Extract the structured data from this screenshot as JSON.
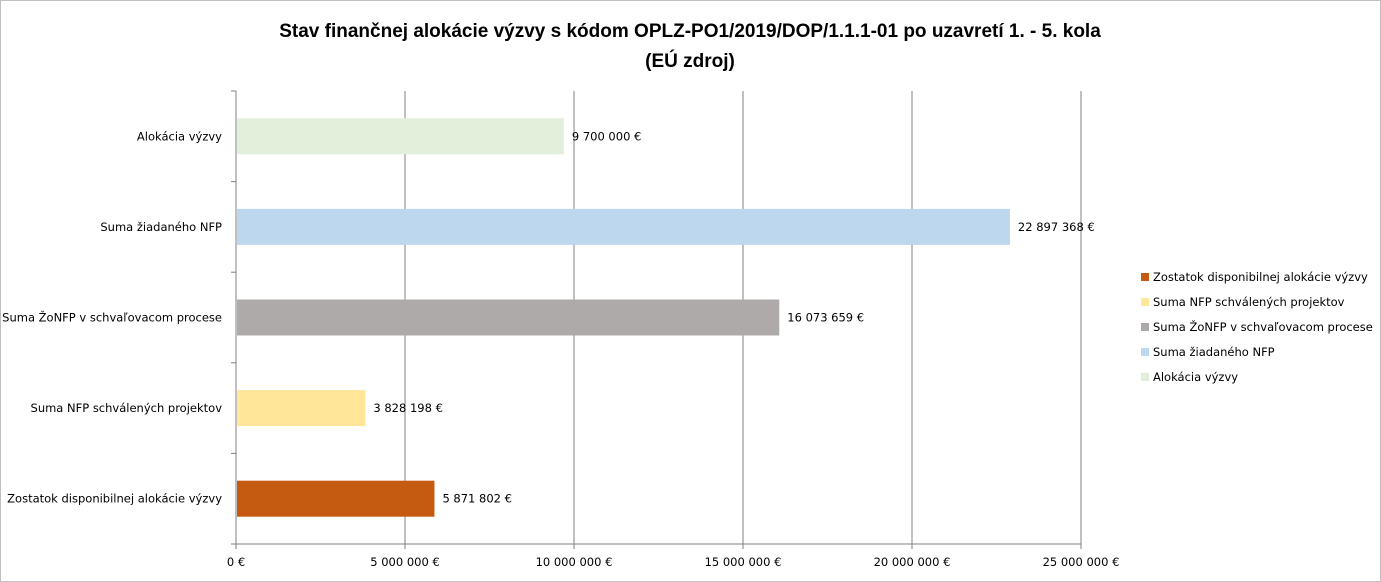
{
  "chart_data": {
    "type": "bar",
    "orientation": "horizontal",
    "title_lines": [
      "Stav finančnej alokácie výzvy s kódom OPLZ-PO1/2019/DOP/1.1.1-01 po uzavretí 1. - 5. kola",
      "(EÚ zdroj)"
    ],
    "xlabel": "",
    "ylabel": "",
    "xlim": [
      0,
      25000000
    ],
    "x_ticks": [
      {
        "value": 0,
        "label": "0 €"
      },
      {
        "value": 5000000,
        "label": "5 000 000 €"
      },
      {
        "value": 10000000,
        "label": "10 000 000 €"
      },
      {
        "value": 15000000,
        "label": "15 000 000 €"
      },
      {
        "value": 20000000,
        "label": "20 000 000 €"
      },
      {
        "value": 25000000,
        "label": "25 000 000 €"
      }
    ],
    "grid": "vertical",
    "legend_position": "right",
    "bars": [
      {
        "category": "Alokácia výzvy",
        "value": 9700000,
        "label": "9 700 000 €",
        "color": "#e2efda"
      },
      {
        "category": "Suma žiadaného NFP",
        "value": 22897368,
        "label": "22 897 368 €",
        "color": "#bdd7ee"
      },
      {
        "category": "Suma ŽoNFP v schvaľovacom procese",
        "value": 16073659,
        "label": "16 073 659 €",
        "color": "#aeaaaa"
      },
      {
        "category": "Suma NFP schválených projektov",
        "value": 3828198,
        "label": "3 828 198 €",
        "color": "#ffe699"
      },
      {
        "category": "Zostatok disponibilnej alokácie výzvy",
        "value": 5871802,
        "label": "5 871 802 €",
        "color": "#c55a11"
      }
    ],
    "legend": [
      {
        "label": "Zostatok disponibilnej alokácie výzvy",
        "color": "#c55a11"
      },
      {
        "label": "Suma NFP schválených projektov",
        "color": "#ffe699"
      },
      {
        "label": "Suma ŽoNFP v schvaľovacom procese",
        "color": "#aeaaaa"
      },
      {
        "label": "Suma žiadaného NFP",
        "color": "#bdd7ee"
      },
      {
        "label": "Alokácia výzvy",
        "color": "#e2efda"
      }
    ],
    "grid_color": "#808080",
    "axis_color": "#808080"
  }
}
